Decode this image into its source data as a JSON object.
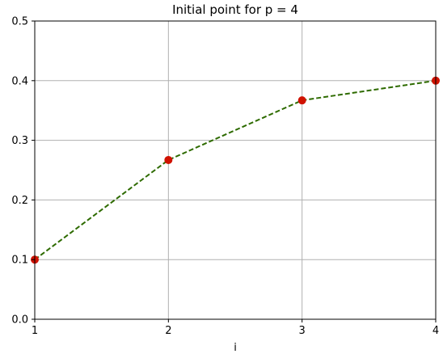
{
  "chart_data": {
    "type": "line",
    "title": "Initial point for p = 4",
    "xlabel": "i",
    "ylabel": "",
    "x": [
      1,
      2,
      3,
      4
    ],
    "xticks": [
      "1",
      "2",
      "3",
      "4"
    ],
    "yticks": [
      "0.0",
      "0.1",
      "0.2",
      "0.3",
      "0.4",
      "0.5"
    ],
    "xlim": [
      1,
      4
    ],
    "ylim": [
      0,
      0.5
    ],
    "grid": true,
    "series": [
      {
        "values": [
          0.1,
          0.267,
          0.367,
          0.4
        ],
        "line_color": "#2e6b00",
        "line_style": "dashed",
        "marker_color": "#d01200",
        "marker": "circle"
      }
    ]
  }
}
